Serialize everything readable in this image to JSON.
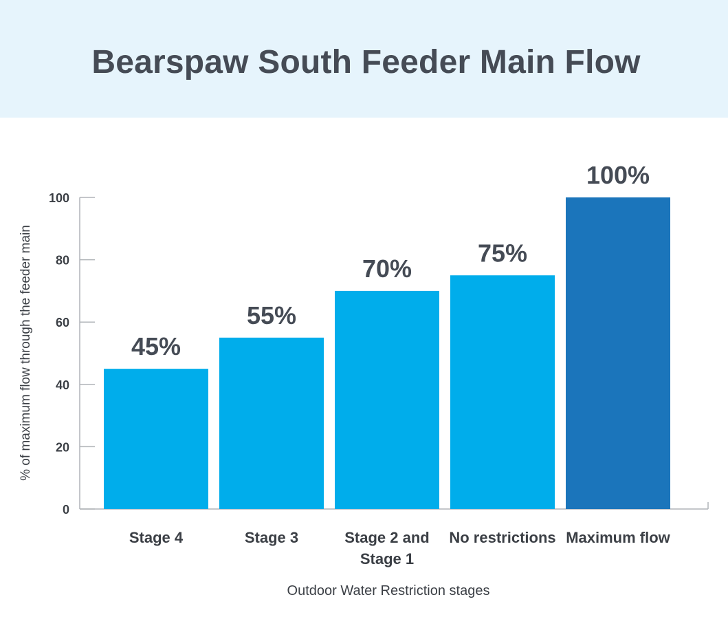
{
  "title": "Bearspaw South Feeder Main Flow",
  "chart_data": {
    "type": "bar",
    "title": "Bearspaw South Feeder Main Flow",
    "xlabel": "Outdoor Water Restriction stages",
    "ylabel": "% of maximum flow through the feeder main",
    "categories": [
      [
        "Stage 4"
      ],
      [
        "Stage 3"
      ],
      [
        "Stage 2 and",
        "Stage 1"
      ],
      [
        "No restrictions"
      ],
      [
        "Maximum flow"
      ]
    ],
    "values": [
      45,
      55,
      70,
      75,
      100
    ],
    "value_labels": [
      "45%",
      "55%",
      "70%",
      "75%",
      "100%"
    ],
    "ylim": [
      0,
      100
    ],
    "yticks": [
      0,
      20,
      40,
      60,
      80,
      100
    ],
    "grid": false,
    "colors": {
      "bar": "#00adeb",
      "highlight_bar": "#1b75bb",
      "header_bg": "#e6f4fc",
      "text": "#454b55",
      "axis": "#b0b4b8"
    },
    "highlight_index": 4
  }
}
